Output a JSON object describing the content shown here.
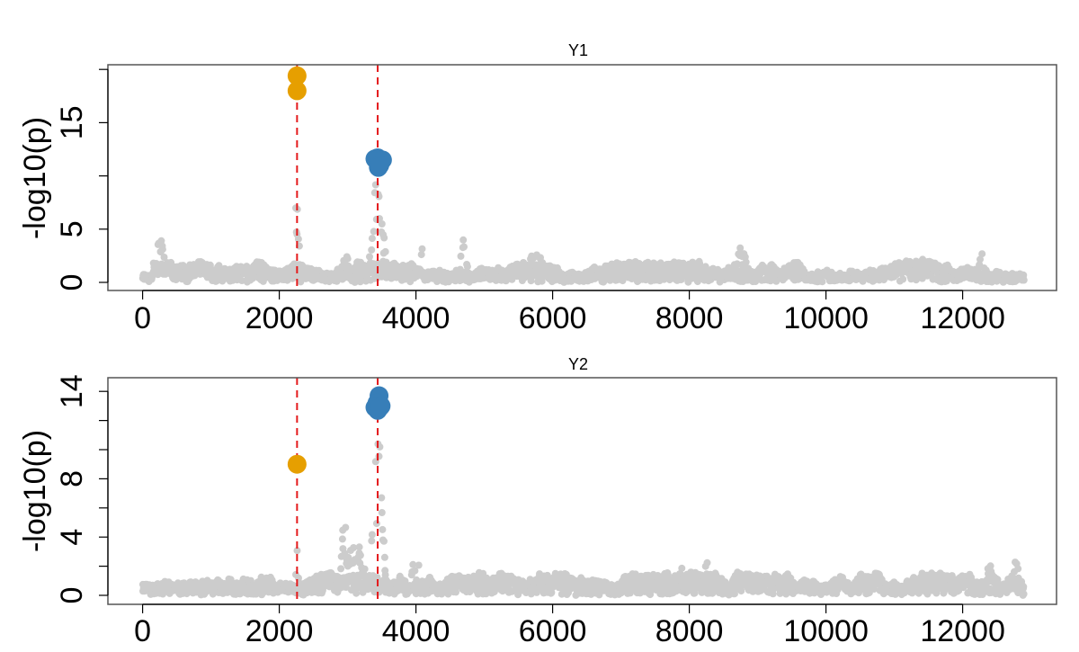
{
  "colors": {
    "background_points": "#cccccc",
    "lead_a": "#E69F00",
    "lead_b": "#377EB8",
    "marker_line": "#E41A1C",
    "axis": "#000000",
    "box": "#555555"
  },
  "chart_data": [
    {
      "type": "scatter",
      "title": "Y1",
      "xlabel": "",
      "ylabel": "-log10(p)",
      "xlim": [
        -500,
        13300
      ],
      "ylim": [
        0,
        20.5
      ],
      "x_ticks": [
        0,
        2000,
        4000,
        6000,
        8000,
        10000,
        12000
      ],
      "x_tick_labels": [
        "0",
        "2000",
        "4000",
        "6000",
        "8000",
        "10000",
        "12000"
      ],
      "y_ticks": [
        0,
        5,
        10,
        15,
        20
      ],
      "y_tick_labels": [
        "0",
        "5",
        "",
        "15",
        ""
      ],
      "vlines": [
        2260,
        3440
      ],
      "n_markers": 12900,
      "background_peaks": [
        {
          "x": 250,
          "height": 4.2,
          "width": 60
        },
        {
          "x": 2260,
          "height": 10.2,
          "width": 25
        },
        {
          "x": 2980,
          "height": 3.0,
          "width": 60
        },
        {
          "x": 3440,
          "height": 10.5,
          "width": 70
        },
        {
          "x": 4080,
          "height": 3.6,
          "width": 20
        },
        {
          "x": 4700,
          "height": 5.0,
          "width": 40
        },
        {
          "x": 5750,
          "height": 3.0,
          "width": 100
        },
        {
          "x": 8750,
          "height": 3.4,
          "width": 80
        },
        {
          "x": 11380,
          "height": 2.6,
          "width": 60
        },
        {
          "x": 12280,
          "height": 2.7,
          "width": 40
        }
      ],
      "highlighted": [
        {
          "group": "lead_a",
          "x": 2260,
          "y": 19.4
        },
        {
          "group": "lead_a",
          "x": 2260,
          "y": 18.0
        },
        {
          "group": "lead_b",
          "x": 3400,
          "y": 11.6
        },
        {
          "group": "lead_b",
          "x": 3440,
          "y": 11.7
        },
        {
          "group": "lead_b",
          "x": 3480,
          "y": 11.5
        },
        {
          "group": "lead_b",
          "x": 3510,
          "y": 11.5
        },
        {
          "group": "lead_b",
          "x": 3470,
          "y": 11.0
        },
        {
          "group": "lead_b",
          "x": 3450,
          "y": 10.8
        }
      ]
    },
    {
      "type": "scatter",
      "title": "Y2",
      "xlabel": "",
      "ylabel": "-log10(p)",
      "xlim": [
        -500,
        13300
      ],
      "ylim": [
        0,
        14.5
      ],
      "x_ticks": [
        0,
        2000,
        4000,
        6000,
        8000,
        10000,
        12000
      ],
      "x_tick_labels": [
        "0",
        "2000",
        "4000",
        "6000",
        "8000",
        "10000",
        "12000"
      ],
      "y_ticks": [
        0,
        2,
        4,
        6,
        8,
        10,
        12,
        14
      ],
      "y_tick_labels": [
        "0",
        "",
        "4",
        "",
        "8",
        "",
        "",
        "14"
      ],
      "vlines": [
        2260,
        3440
      ],
      "n_markers": 12900,
      "background_peaks": [
        {
          "x": 2260,
          "height": 4.0,
          "width": 15
        },
        {
          "x": 2950,
          "height": 5.7,
          "width": 40
        },
        {
          "x": 3100,
          "height": 4.0,
          "width": 120
        },
        {
          "x": 3440,
          "height": 12.0,
          "width": 60
        },
        {
          "x": 4000,
          "height": 3.0,
          "width": 60
        },
        {
          "x": 7900,
          "height": 2.7,
          "width": 20
        },
        {
          "x": 8250,
          "height": 3.2,
          "width": 20
        },
        {
          "x": 12400,
          "height": 2.8,
          "width": 40
        },
        {
          "x": 12780,
          "height": 2.6,
          "width": 30
        }
      ],
      "highlighted": [
        {
          "group": "lead_a",
          "x": 2260,
          "y": 9.0
        },
        {
          "group": "lead_b",
          "x": 3460,
          "y": 13.7
        },
        {
          "group": "lead_b",
          "x": 3430,
          "y": 13.2
        },
        {
          "group": "lead_b",
          "x": 3490,
          "y": 13.0
        },
        {
          "group": "lead_b",
          "x": 3400,
          "y": 12.9
        },
        {
          "group": "lead_b",
          "x": 3440,
          "y": 12.7
        },
        {
          "group": "lead_b",
          "x": 3470,
          "y": 12.9
        }
      ]
    }
  ]
}
